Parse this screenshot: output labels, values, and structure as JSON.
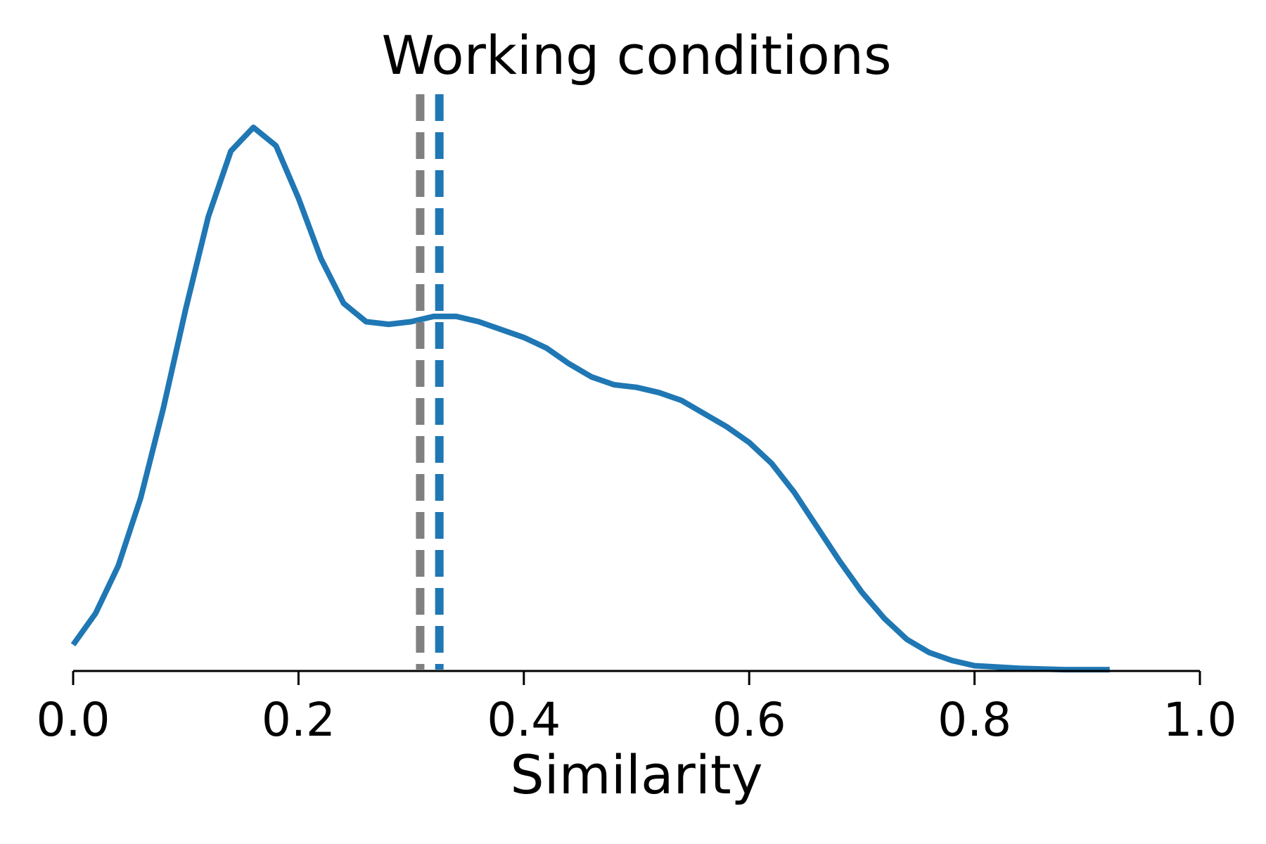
{
  "chart_data": {
    "type": "line",
    "title": "Working conditions",
    "xlabel": "Similarity",
    "ylabel": "",
    "xlim": [
      0.0,
      1.0
    ],
    "ylim": [
      0,
      2.18
    ],
    "grid": false,
    "x_ticks": [
      "0.0",
      "0.2",
      "0.4",
      "0.6",
      "0.8",
      "1.0"
    ],
    "colors": {
      "curve": "#1f77b4",
      "mean_line": "#1f77b4",
      "reference_line": "#808080"
    },
    "series": [
      {
        "values": [
          [
            0.0,
            0.1
          ],
          [
            0.02,
            0.22
          ],
          [
            0.04,
            0.4
          ],
          [
            0.06,
            0.66
          ],
          [
            0.08,
            1.0
          ],
          [
            0.1,
            1.38
          ],
          [
            0.12,
            1.73
          ],
          [
            0.14,
            1.98
          ],
          [
            0.16,
            2.07
          ],
          [
            0.18,
            2.0
          ],
          [
            0.2,
            1.8
          ],
          [
            0.22,
            1.57
          ],
          [
            0.24,
            1.4
          ],
          [
            0.26,
            1.33
          ],
          [
            0.28,
            1.32
          ],
          [
            0.3,
            1.33
          ],
          [
            0.32,
            1.35
          ],
          [
            0.34,
            1.35
          ],
          [
            0.36,
            1.33
          ],
          [
            0.38,
            1.3
          ],
          [
            0.4,
            1.27
          ],
          [
            0.42,
            1.23
          ],
          [
            0.44,
            1.17
          ],
          [
            0.46,
            1.12
          ],
          [
            0.48,
            1.09
          ],
          [
            0.5,
            1.08
          ],
          [
            0.52,
            1.06
          ],
          [
            0.54,
            1.03
          ],
          [
            0.56,
            0.98
          ],
          [
            0.58,
            0.93
          ],
          [
            0.6,
            0.87
          ],
          [
            0.62,
            0.79
          ],
          [
            0.64,
            0.68
          ],
          [
            0.66,
            0.55
          ],
          [
            0.68,
            0.42
          ],
          [
            0.7,
            0.3
          ],
          [
            0.72,
            0.2
          ],
          [
            0.74,
            0.12
          ],
          [
            0.76,
            0.07
          ],
          [
            0.78,
            0.04
          ],
          [
            0.8,
            0.02
          ],
          [
            0.84,
            0.01
          ],
          [
            0.88,
            0.005
          ],
          [
            0.92,
            0.005
          ]
        ]
      }
    ],
    "vertical_lines": [
      {
        "x": 0.308,
        "color": "#808080",
        "style": "dashed"
      },
      {
        "x": 0.325,
        "color": "#1f77b4",
        "style": "dashed"
      }
    ]
  }
}
